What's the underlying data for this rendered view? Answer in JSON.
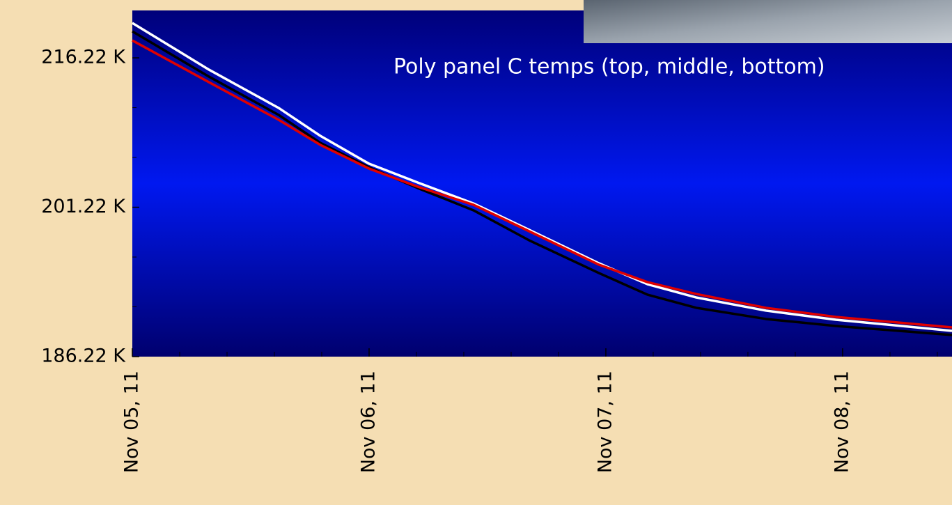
{
  "chart_data": {
    "type": "line",
    "title": "Poly panel C temps (top, middle, bottom)",
    "x": [
      5,
      5.324,
      5.618,
      5.794,
      6,
      6.206,
      6.441,
      6.676,
      6.971,
      7.176,
      7.382,
      7.676,
      7.971,
      8.462
    ],
    "series": [
      {
        "color": "#ffffff",
        "values": [
          219.72,
          215.03,
          211.19,
          208.39,
          205.59,
          203.7,
          201.6,
          198.95,
          195.59,
          193.49,
          192.16,
          190.84,
          189.93,
          188.81
        ]
      },
      {
        "color": "#000000",
        "values": [
          218.88,
          214.33,
          210.49,
          207.69,
          205.24,
          203.14,
          200.91,
          197.9,
          194.61,
          192.44,
          191.12,
          190.0,
          189.3,
          188.39
        ]
      },
      {
        "color": "#e00000",
        "values": [
          217.97,
          213.77,
          210.0,
          207.48,
          205.1,
          203.28,
          201.46,
          198.81,
          195.45,
          193.7,
          192.51,
          191.12,
          190.21,
          189.16
        ]
      }
    ],
    "xlim": [
      5,
      8.462
    ],
    "ylim": [
      186.22,
      220.98
    ],
    "xticks": [
      {
        "value": 5,
        "label": "Nov 05, 11"
      },
      {
        "value": 6,
        "label": "Nov 06, 11"
      },
      {
        "value": 7,
        "label": "Nov 07, 11"
      },
      {
        "value": 8,
        "label": "Nov 08, 11"
      }
    ],
    "xminorticks": [
      5.2,
      5.4,
      5.6,
      5.8,
      6.2,
      6.4,
      6.6,
      6.8,
      7.2,
      7.4,
      7.6,
      7.8,
      8.2,
      8.4
    ],
    "yticks": [
      {
        "value": 186.22,
        "label": "186.22 K"
      },
      {
        "value": 201.22,
        "label": "201.22 K"
      },
      {
        "value": 216.22,
        "label": "216.22 K"
      }
    ],
    "yminorticks": [
      191.22,
      196.22,
      206.22,
      211.22
    ]
  }
}
